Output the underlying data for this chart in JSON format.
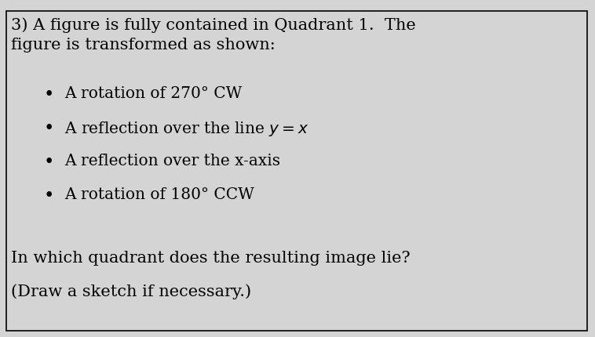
{
  "background_color": "#d4d4d4",
  "border_color": "#000000",
  "text_color": "#000000",
  "question_number": "3)",
  "line1": "A figure is fully contained in Quadrant 1.  The",
  "line2": "figure is transformed as shown:",
  "bullet1": "A rotation of 270° CW",
  "bullet2_pre": "A reflection over the line ",
  "bullet2_math": "$y = x$",
  "bullet3": "A reflection over the x-axis",
  "bullet4": "A rotation of 180° CCW",
  "footer_line1": "In which quadrant does the resulting image lie?",
  "footer_line2": "(Draw a sketch if necessary.)",
  "font_size_main": 15,
  "font_size_bullet": 14.5,
  "font_size_footer": 15
}
